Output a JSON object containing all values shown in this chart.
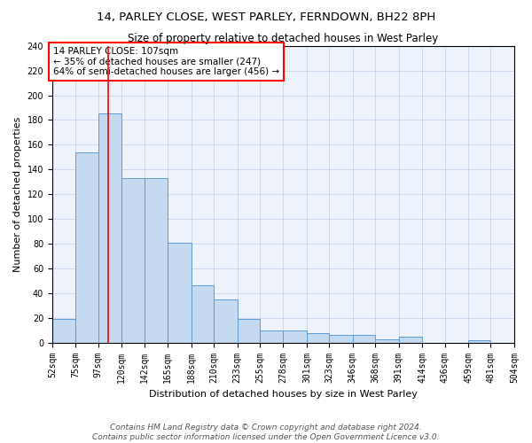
{
  "title1": "14, PARLEY CLOSE, WEST PARLEY, FERNDOWN, BH22 8PH",
  "title2": "Size of property relative to detached houses in West Parley",
  "xlabel": "Distribution of detached houses by size in West Parley",
  "ylabel": "Number of detached properties",
  "bar_values": [
    19,
    154,
    185,
    133,
    133,
    81,
    46,
    35,
    19,
    10,
    10,
    8,
    6,
    6,
    3,
    5,
    0,
    0,
    2,
    0
  ],
  "bin_edges": [
    52,
    75,
    97,
    120,
    142,
    165,
    188,
    210,
    233,
    255,
    278,
    301,
    323,
    346,
    368,
    391,
    414,
    436,
    459,
    481,
    504
  ],
  "tick_labels": [
    "52sqm",
    "75sqm",
    "97sqm",
    "120sqm",
    "142sqm",
    "165sqm",
    "188sqm",
    "210sqm",
    "233sqm",
    "255sqm",
    "278sqm",
    "301sqm",
    "323sqm",
    "346sqm",
    "368sqm",
    "391sqm",
    "414sqm",
    "436sqm",
    "459sqm",
    "481sqm",
    "504sqm"
  ],
  "bar_color": "#c5d9f0",
  "bar_edge_color": "#5b9bd5",
  "grid_color": "#c8d4ea",
  "background_color": "#eef2fb",
  "property_size": 107,
  "annotation_text": "14 PARLEY CLOSE: 107sqm\n← 35% of detached houses are smaller (247)\n64% of semi-detached houses are larger (456) →",
  "footnote": "Contains HM Land Registry data © Crown copyright and database right 2024.\nContains public sector information licensed under the Open Government Licence v3.0.",
  "ylim": [
    0,
    240
  ],
  "yticks": [
    0,
    20,
    40,
    60,
    80,
    100,
    120,
    140,
    160,
    180,
    200,
    220,
    240
  ],
  "title1_fontsize": 9.5,
  "title2_fontsize": 8.5,
  "xlabel_fontsize": 8,
  "ylabel_fontsize": 8,
  "tick_fontsize": 7,
  "annot_fontsize": 7.5,
  "footnote_fontsize": 6.5
}
